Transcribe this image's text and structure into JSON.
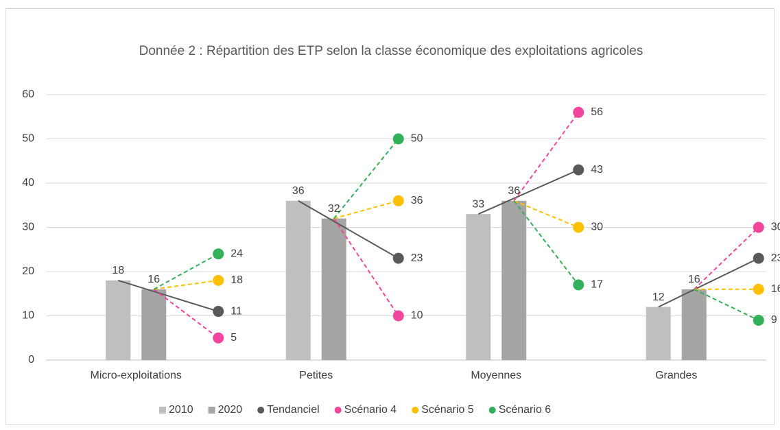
{
  "chart_data": {
    "type": "bar-line",
    "title": "Donnée 2 : Répartition des ETP selon la classe économique des exploitations agricoles",
    "categories": [
      "Micro-exploitations",
      "Petites",
      "Moyennes",
      "Grandes"
    ],
    "ylim": [
      0,
      60
    ],
    "yticks": [
      0,
      10,
      20,
      30,
      40,
      50,
      60
    ],
    "grid": true,
    "legend": "bottom",
    "series": [
      {
        "name": "2010",
        "kind": "bar",
        "color": "#bfbfbf",
        "values": [
          18,
          36,
          33,
          12
        ]
      },
      {
        "name": "2020",
        "kind": "bar",
        "color": "#a5a5a5",
        "values": [
          16,
          32,
          36,
          16
        ]
      },
      {
        "name": "Tendanciel",
        "kind": "line",
        "from": "2010",
        "dashed": false,
        "color": "#595959",
        "values": [
          11,
          23,
          43,
          23
        ]
      },
      {
        "name": "Scénario 4",
        "kind": "line",
        "from": "2020",
        "dashed": true,
        "color": "#f2459b",
        "values": [
          5,
          10,
          56,
          30
        ]
      },
      {
        "name": "Scénario 5",
        "kind": "line",
        "from": "2020",
        "dashed": true,
        "color": "#ffc000",
        "values": [
          18,
          36,
          30,
          16
        ]
      },
      {
        "name": "Scénario 6",
        "kind": "line",
        "from": "2020",
        "dashed": true,
        "color": "#33b05a",
        "values": [
          24,
          50,
          17,
          9
        ]
      }
    ]
  }
}
